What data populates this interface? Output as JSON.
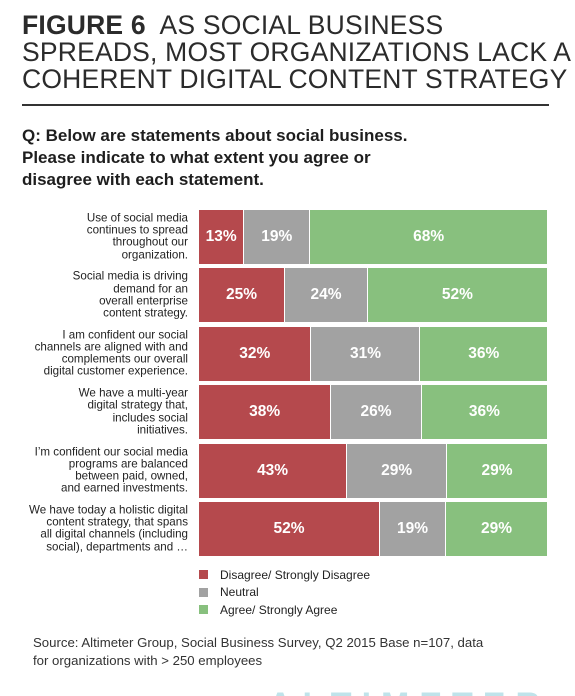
{
  "title": {
    "figure_label": "FIGURE 6",
    "line1_rest": "AS SOCIAL BUSINESS",
    "line2": "SPREADS, MOST ORGANIZATIONS LACK A",
    "line3": "COHERENT DIGITAL CONTENT STRATEGY"
  },
  "question": {
    "line1": "Q: Below are statements about social business.",
    "line2": "Please indicate to what extent you agree or",
    "line3": "disagree with each statement."
  },
  "chart_data": {
    "type": "bar",
    "orientation": "horizontal",
    "stacked": true,
    "categories": [
      "Use of social media continues to spread throughout our organization.",
      "Social media is driving demand for an overall enterprise content strategy.",
      "I am confident our social channels are aligned with and complements our overall digital customer experience.",
      "We have a multi-year digital strategy that, includes social initiatives.",
      "I’m confident our social media programs are balanced between paid, owned, and earned investments.",
      "We have today a holistic digital content strategy, that spans all digital channels (including social), departments and …"
    ],
    "category_lines": [
      [
        "Use of social media",
        "continues to spread",
        "throughout our",
        "organization."
      ],
      [
        "Social media is driving",
        "demand for an",
        "overall enterprise",
        "content strategy."
      ],
      [
        "I am confident our social",
        "channels are aligned with and",
        "complements our overall",
        "digital customer experience."
      ],
      [
        "We have a multi-year",
        "digital strategy that,",
        "includes social",
        "initiatives."
      ],
      [
        "I’m confident our social media",
        "programs are balanced",
        "between paid, owned,",
        "and earned investments."
      ],
      [
        "We have today a holistic digital",
        "content strategy, that spans",
        "all digital channels (including",
        "social), departments and …"
      ]
    ],
    "series": [
      {
        "name": "Disagree/ Strongly Disagree",
        "color": "#b5494d",
        "values": [
          13,
          25,
          32,
          38,
          43,
          52
        ]
      },
      {
        "name": "Neutral",
        "color": "#a2a2a2",
        "values": [
          19,
          24,
          31,
          26,
          29,
          19
        ]
      },
      {
        "name": "Agree/ Strongly Agree",
        "color": "#88c07e",
        "values": [
          68,
          52,
          36,
          36,
          29,
          29
        ]
      }
    ],
    "value_suffix": "%",
    "legend_position": "bottom-left",
    "grid": false
  },
  "source": {
    "line1": "Source: Altimeter Group, Social Business Survey, Q2 2015 Base n=107, data",
    "line2": "for organizations with > 250 employees"
  },
  "logo": {
    "text": "ALTIMETER",
    "color": "#bfe3ea"
  }
}
